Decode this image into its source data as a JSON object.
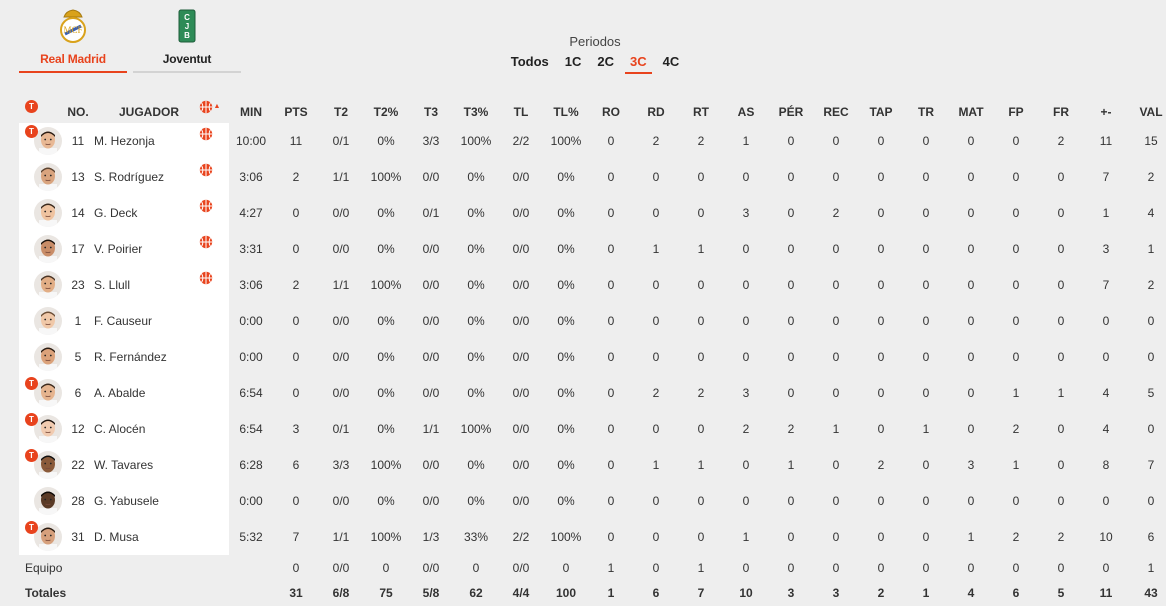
{
  "colors": {
    "accent": "#e8431d",
    "panel": "#ffffff",
    "background": "#eeeeee"
  },
  "teams": [
    {
      "name": "Real Madrid",
      "active": true,
      "logo": "real-madrid-crest"
    },
    {
      "name": "Joventut",
      "active": false,
      "logo": "joventut-crest"
    }
  ],
  "periods": {
    "label": "Periodos",
    "tabs": [
      "Todos",
      "1C",
      "2C",
      "3C",
      "4C"
    ],
    "active": "3C"
  },
  "columns": {
    "starter_badge": "T",
    "no": "NO.",
    "player": "JUGADOR",
    "stats": [
      "MIN",
      "PTS",
      "T2",
      "T2%",
      "T3",
      "T3%",
      "TL",
      "TL%",
      "RO",
      "RD",
      "RT",
      "AS",
      "PÉR",
      "REC",
      "TAP",
      "TR",
      "MAT",
      "FP",
      "FR",
      "+-",
      "VAL"
    ]
  },
  "players": [
    {
      "no": "11",
      "name": "M. Hezonja",
      "starter": true,
      "on_court": true,
      "stats": [
        "10:00",
        "11",
        "0/1",
        "0%",
        "3/3",
        "100%",
        "2/2",
        "100%",
        "0",
        "2",
        "2",
        "1",
        "0",
        "0",
        "0",
        "0",
        "0",
        "0",
        "2",
        "11",
        "15"
      ]
    },
    {
      "no": "13",
      "name": "S. Rodríguez",
      "starter": false,
      "on_court": true,
      "stats": [
        "3:06",
        "2",
        "1/1",
        "100%",
        "0/0",
        "0%",
        "0/0",
        "0%",
        "0",
        "0",
        "0",
        "0",
        "0",
        "0",
        "0",
        "0",
        "0",
        "0",
        "0",
        "7",
        "2"
      ]
    },
    {
      "no": "14",
      "name": "G. Deck",
      "starter": false,
      "on_court": true,
      "stats": [
        "4:27",
        "0",
        "0/0",
        "0%",
        "0/1",
        "0%",
        "0/0",
        "0%",
        "0",
        "0",
        "0",
        "3",
        "0",
        "2",
        "0",
        "0",
        "0",
        "0",
        "0",
        "1",
        "4"
      ]
    },
    {
      "no": "17",
      "name": "V. Poirier",
      "starter": false,
      "on_court": true,
      "stats": [
        "3:31",
        "0",
        "0/0",
        "0%",
        "0/0",
        "0%",
        "0/0",
        "0%",
        "0",
        "1",
        "1",
        "0",
        "0",
        "0",
        "0",
        "0",
        "0",
        "0",
        "0",
        "3",
        "1"
      ]
    },
    {
      "no": "23",
      "name": "S. Llull",
      "starter": false,
      "on_court": true,
      "stats": [
        "3:06",
        "2",
        "1/1",
        "100%",
        "0/0",
        "0%",
        "0/0",
        "0%",
        "0",
        "0",
        "0",
        "0",
        "0",
        "0",
        "0",
        "0",
        "0",
        "0",
        "0",
        "7",
        "2"
      ]
    },
    {
      "no": "1",
      "name": "F. Causeur",
      "starter": false,
      "on_court": false,
      "stats": [
        "0:00",
        "0",
        "0/0",
        "0%",
        "0/0",
        "0%",
        "0/0",
        "0%",
        "0",
        "0",
        "0",
        "0",
        "0",
        "0",
        "0",
        "0",
        "0",
        "0",
        "0",
        "0",
        "0"
      ]
    },
    {
      "no": "5",
      "name": "R. Fernández",
      "starter": false,
      "on_court": false,
      "stats": [
        "0:00",
        "0",
        "0/0",
        "0%",
        "0/0",
        "0%",
        "0/0",
        "0%",
        "0",
        "0",
        "0",
        "0",
        "0",
        "0",
        "0",
        "0",
        "0",
        "0",
        "0",
        "0",
        "0"
      ]
    },
    {
      "no": "6",
      "name": "A. Abalde",
      "starter": true,
      "on_court": false,
      "stats": [
        "6:54",
        "0",
        "0/0",
        "0%",
        "0/0",
        "0%",
        "0/0",
        "0%",
        "0",
        "2",
        "2",
        "3",
        "0",
        "0",
        "0",
        "0",
        "0",
        "1",
        "1",
        "4",
        "5"
      ]
    },
    {
      "no": "12",
      "name": "C. Alocén",
      "starter": true,
      "on_court": false,
      "stats": [
        "6:54",
        "3",
        "0/1",
        "0%",
        "1/1",
        "100%",
        "0/0",
        "0%",
        "0",
        "0",
        "0",
        "2",
        "2",
        "1",
        "0",
        "1",
        "0",
        "2",
        "0",
        "4",
        "0"
      ]
    },
    {
      "no": "22",
      "name": "W. Tavares",
      "starter": true,
      "on_court": false,
      "stats": [
        "6:28",
        "6",
        "3/3",
        "100%",
        "0/0",
        "0%",
        "0/0",
        "0%",
        "0",
        "1",
        "1",
        "0",
        "1",
        "0",
        "2",
        "0",
        "3",
        "1",
        "0",
        "8",
        "7"
      ]
    },
    {
      "no": "28",
      "name": "G. Yabusele",
      "starter": false,
      "on_court": false,
      "stats": [
        "0:00",
        "0",
        "0/0",
        "0%",
        "0/0",
        "0%",
        "0/0",
        "0%",
        "0",
        "0",
        "0",
        "0",
        "0",
        "0",
        "0",
        "0",
        "0",
        "0",
        "0",
        "0",
        "0"
      ]
    },
    {
      "no": "31",
      "name": "D. Musa",
      "starter": true,
      "on_court": false,
      "stats": [
        "5:32",
        "7",
        "1/1",
        "100%",
        "1/3",
        "33%",
        "2/2",
        "100%",
        "0",
        "0",
        "0",
        "1",
        "0",
        "0",
        "0",
        "0",
        "1",
        "2",
        "2",
        "10",
        "6"
      ]
    }
  ],
  "team_row": {
    "label": "Equipo",
    "stats": [
      "",
      "0",
      "0/0",
      "0",
      "0/0",
      "0",
      "0/0",
      "0",
      "1",
      "0",
      "1",
      "0",
      "0",
      "0",
      "0",
      "0",
      "0",
      "0",
      "0",
      "0",
      "1"
    ]
  },
  "totals_row": {
    "label": "Totales",
    "stats": [
      "",
      "31",
      "6/8",
      "75",
      "5/8",
      "62",
      "4/4",
      "100",
      "1",
      "6",
      "7",
      "10",
      "3",
      "3",
      "2",
      "1",
      "4",
      "6",
      "5",
      "11",
      "43"
    ]
  }
}
